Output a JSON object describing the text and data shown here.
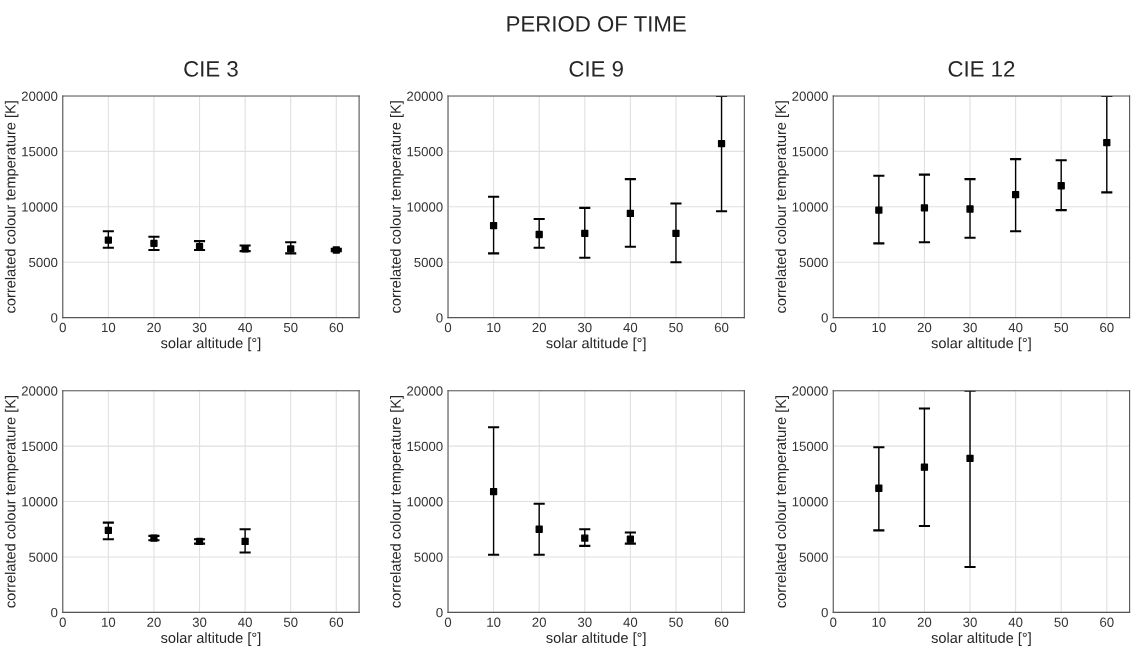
{
  "chart_data": [
    {
      "type": "scatter",
      "title": "CIE 3",
      "xlabel": "solar altitude [°]",
      "ylabel": "correlated colour temperature [K]",
      "x": [
        10,
        20,
        30,
        40,
        50,
        60
      ],
      "values": [
        7000,
        6700,
        6400,
        6200,
        6200,
        6100
      ],
      "errors": [
        [
          6300,
          7800
        ],
        [
          6100,
          7300
        ],
        [
          6100,
          6900
        ],
        [
          6000,
          6500
        ],
        [
          5800,
          6800
        ],
        [
          6000,
          6200
        ]
      ],
      "color": "#000000",
      "marker": "square",
      "xlim": [
        0,
        65
      ],
      "xticks": [
        0,
        10,
        20,
        30,
        40,
        50,
        60
      ],
      "ylim": [
        0,
        20000
      ],
      "yticks": [
        0,
        5000,
        10000,
        15000,
        20000
      ],
      "grid": true
    },
    {
      "type": "scatter",
      "title": "CIE 9",
      "annotations": [
        "PERIOD OF TIME"
      ],
      "xlabel": "solar altitude [°]",
      "ylabel": "correlated colour temperature [K]",
      "x": [
        10,
        20,
        30,
        40,
        50,
        60
      ],
      "values": [
        8300,
        7500,
        7600,
        9400,
        7600,
        15700
      ],
      "errors": [
        [
          5800,
          10900
        ],
        [
          6300,
          8900
        ],
        [
          5400,
          9900
        ],
        [
          6400,
          12500
        ],
        [
          5000,
          10300
        ],
        [
          9600,
          20000
        ]
      ],
      "color": "#000000",
      "marker": "square",
      "xlim": [
        0,
        65
      ],
      "xticks": [
        0,
        10,
        20,
        30,
        40,
        50,
        60
      ],
      "ylim": [
        0,
        20000
      ],
      "yticks": [
        0,
        5000,
        10000,
        15000,
        20000
      ],
      "grid": true
    },
    {
      "type": "scatter",
      "title": "CIE 12",
      "xlabel": "solar altitude [°]",
      "ylabel": "correlated colour temperature [K]",
      "x": [
        10,
        20,
        30,
        40,
        50,
        60
      ],
      "values": [
        9700,
        9900,
        9800,
        11100,
        11900,
        15800
      ],
      "errors": [
        [
          6700,
          12800
        ],
        [
          6800,
          12900
        ],
        [
          7200,
          12500
        ],
        [
          7800,
          14300
        ],
        [
          9700,
          14200
        ],
        [
          11300,
          20000
        ]
      ],
      "color": "#000000",
      "marker": "square",
      "xlim": [
        0,
        65
      ],
      "xticks": [
        0,
        10,
        20,
        30,
        40,
        50,
        60
      ],
      "ylim": [
        0,
        20000
      ],
      "yticks": [
        0,
        5000,
        10000,
        15000,
        20000
      ],
      "grid": true
    },
    {
      "type": "scatter",
      "xlabel": "solar altitude [°]",
      "ylabel": "correlated colour temperature [K]",
      "x": [
        10,
        20,
        30,
        40
      ],
      "values": [
        7400,
        6700,
        6400,
        6400
      ],
      "errors": [
        [
          6600,
          8100
        ],
        [
          6500,
          6900
        ],
        [
          6200,
          6600
        ],
        [
          5400,
          7500
        ]
      ],
      "color": "#000000",
      "marker": "square",
      "xlim": [
        0,
        65
      ],
      "xticks": [
        0,
        10,
        20,
        30,
        40,
        50,
        60
      ],
      "ylim": [
        0,
        20000
      ],
      "yticks": [
        0,
        5000,
        10000,
        15000,
        20000
      ],
      "grid": true
    },
    {
      "type": "scatter",
      "xlabel": "solar altitude [°]",
      "ylabel": "correlated colour temperature [K]",
      "x": [
        10,
        20,
        30,
        40
      ],
      "values": [
        10900,
        7500,
        6700,
        6600
      ],
      "errors": [
        [
          5200,
          16700
        ],
        [
          5200,
          9800
        ],
        [
          6000,
          7500
        ],
        [
          6200,
          7200
        ]
      ],
      "color": "#000000",
      "marker": "square",
      "xlim": [
        0,
        65
      ],
      "xticks": [
        0,
        10,
        20,
        30,
        40,
        50,
        60
      ],
      "ylim": [
        0,
        20000
      ],
      "yticks": [
        0,
        5000,
        10000,
        15000,
        20000
      ],
      "grid": true
    },
    {
      "type": "scatter",
      "xlabel": "solar altitude [°]",
      "ylabel": "correlated colour temperature [K]",
      "x": [
        10,
        20,
        30
      ],
      "values": [
        11200,
        13100,
        13900
      ],
      "errors": [
        [
          7400,
          14900
        ],
        [
          7800,
          18400
        ],
        [
          4100,
          20000
        ]
      ],
      "color": "#000000",
      "marker": "square",
      "xlim": [
        0,
        65
      ],
      "xticks": [
        0,
        10,
        20,
        30,
        40,
        50,
        60
      ],
      "ylim": [
        0,
        20000
      ],
      "yticks": [
        0,
        5000,
        10000,
        15000,
        20000
      ],
      "grid": true
    }
  ]
}
